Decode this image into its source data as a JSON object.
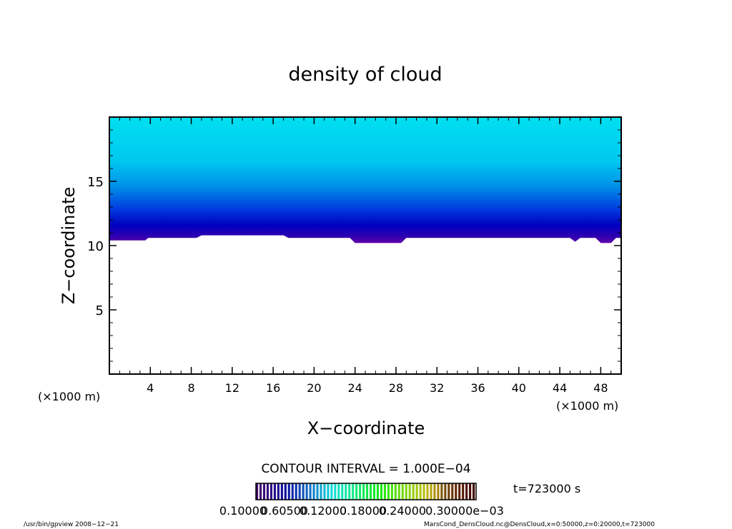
{
  "chart_data": {
    "type": "heatmap",
    "title": "density of cloud",
    "xlabel": "X−coordinate",
    "ylabel": "Z−coordinate",
    "x_unit": "(×1000 m)",
    "xlim": [
      0,
      50
    ],
    "ylim": [
      0,
      20
    ],
    "x_ticks": [
      "4",
      "8",
      "12",
      "16",
      "20",
      "24",
      "28",
      "32",
      "36",
      "40",
      "44",
      "48"
    ],
    "y_ticks": [
      "5",
      "10",
      "15"
    ],
    "x_tick_values": [
      4,
      8,
      12,
      16,
      20,
      24,
      28,
      32,
      36,
      40,
      44,
      48
    ],
    "y_tick_values": [
      5,
      10,
      15
    ],
    "cloud_base": [
      {
        "x": 0,
        "z": 10.4
      },
      {
        "x": 3.5,
        "z": 10.4
      },
      {
        "x": 3.8,
        "z": 10.6
      },
      {
        "x": 8.5,
        "z": 10.6
      },
      {
        "x": 9,
        "z": 10.8
      },
      {
        "x": 17,
        "z": 10.8
      },
      {
        "x": 17.5,
        "z": 10.6
      },
      {
        "x": 23.5,
        "z": 10.6
      },
      {
        "x": 24,
        "z": 10.2
      },
      {
        "x": 28.5,
        "z": 10.2
      },
      {
        "x": 29,
        "z": 10.6
      },
      {
        "x": 45,
        "z": 10.6
      },
      {
        "x": 45.5,
        "z": 10.3
      },
      {
        "x": 46,
        "z": 10.6
      },
      {
        "x": 47.5,
        "z": 10.6
      },
      {
        "x": 48,
        "z": 10.2
      },
      {
        "x": 49,
        "z": 10.2
      },
      {
        "x": 49.5,
        "z": 10.6
      },
      {
        "x": 50,
        "z": 10.6
      }
    ],
    "cloud_top_z": 20,
    "contour_interval": "CONTOUR INTERVAL = 1.000E−04",
    "colorbar_labels": [
      "0.10000",
      "0.60500",
      "0.12000",
      "0.18000",
      "0.24000",
      "0.30000e−03"
    ],
    "time_label": "t=723000 s",
    "colors": {
      "top": "#00e0f0",
      "mid": "#0090e8",
      "deep": "#0000c8",
      "base": "#6000a8"
    }
  },
  "footer": {
    "left": "/usr/bin/gpview  2008−12−21",
    "right": "MarsCond_DensCloud.nc@DensCloud,x=0:50000,z=0:20000,t=723000"
  }
}
